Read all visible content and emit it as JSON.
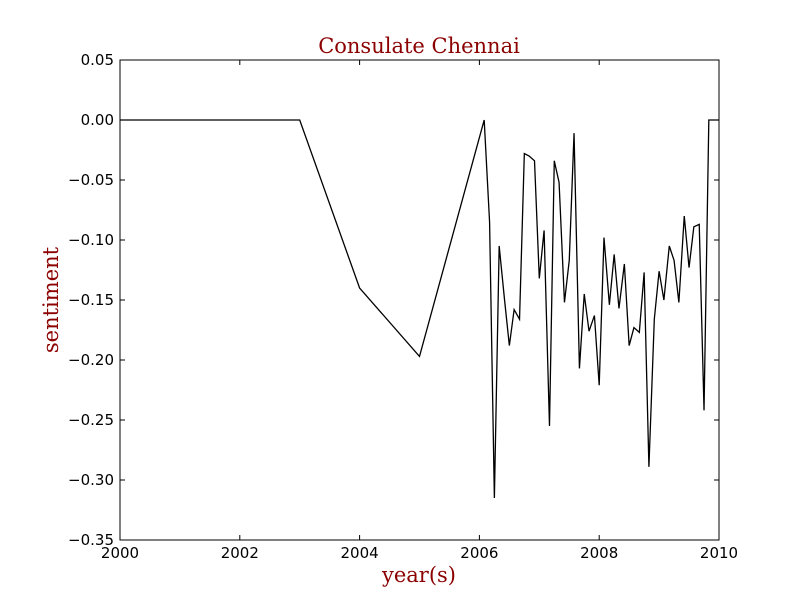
{
  "chart_data": {
    "type": "line",
    "title": "Consulate Chennai",
    "xlabel": "year(s)",
    "ylabel": "sentiment",
    "xlim": [
      2000,
      2010
    ],
    "ylim": [
      -0.35,
      0.05
    ],
    "x_ticks": [
      "2000",
      "2002",
      "2004",
      "2006",
      "2008",
      "2010"
    ],
    "y_ticks": [
      "0.05",
      "0.00",
      "−0.05",
      "−0.10",
      "−0.15",
      "−0.20",
      "−0.25",
      "−0.30",
      "−0.35"
    ],
    "grid": false,
    "legend": "none",
    "line_color": "#000000",
    "series": [
      {
        "x": [
          2000.0,
          2003.0,
          2004.0,
          2005.0,
          2006.08,
          2006.17,
          2006.25,
          2006.33,
          2006.42,
          2006.5,
          2006.58,
          2006.67,
          2006.75,
          2006.83,
          2006.92,
          2007.0,
          2007.08,
          2007.17,
          2007.25,
          2007.33,
          2007.42,
          2007.5,
          2007.58,
          2007.67,
          2007.75,
          2007.83,
          2007.92,
          2008.0,
          2008.08,
          2008.17,
          2008.25,
          2008.33,
          2008.42,
          2008.5,
          2008.58,
          2008.67,
          2008.75,
          2008.83,
          2008.92,
          2009.0,
          2009.08,
          2009.17,
          2009.25,
          2009.33,
          2009.42,
          2009.5,
          2009.58,
          2009.67,
          2009.75,
          2009.83,
          2009.92,
          2010.0
        ],
        "y": [
          0.0,
          0.0,
          -0.14,
          -0.197,
          0.0,
          -0.085,
          -0.315,
          -0.105,
          -0.15,
          -0.188,
          -0.158,
          -0.166,
          -0.028,
          -0.03,
          -0.034,
          -0.132,
          -0.092,
          -0.255,
          -0.034,
          -0.052,
          -0.152,
          -0.117,
          -0.011,
          -0.207,
          -0.145,
          -0.176,
          -0.163,
          -0.221,
          -0.098,
          -0.154,
          -0.112,
          -0.157,
          -0.12,
          -0.188,
          -0.173,
          -0.177,
          -0.127,
          -0.289,
          -0.166,
          -0.126,
          -0.15,
          -0.105,
          -0.117,
          -0.152,
          -0.08,
          -0.123,
          -0.089,
          -0.087,
          -0.242,
          0.0,
          0.0,
          0.0
        ]
      }
    ]
  }
}
